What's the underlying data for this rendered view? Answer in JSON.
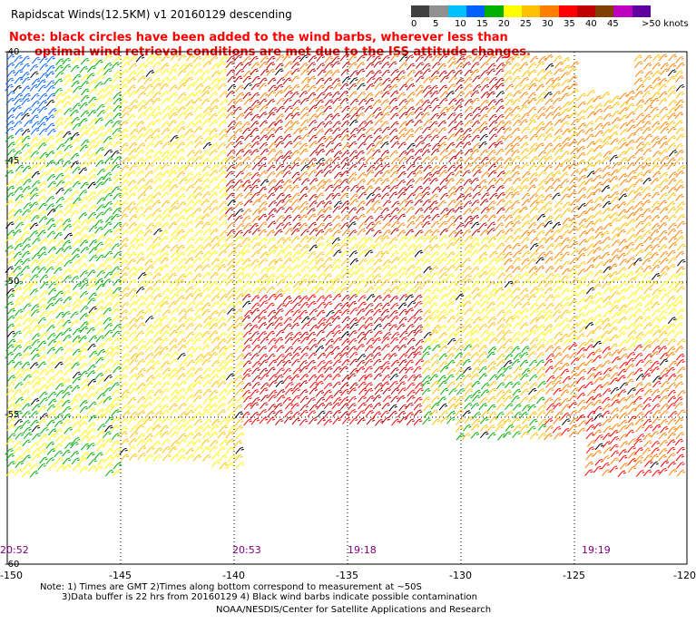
{
  "header": {
    "title": "Rapidscat Winds(12.5KM) v1 20160129 descending",
    "note_line1": "Note: black circles have been added to the wind barbs, wherever less than",
    "note_line2": "optimal wind retrieval conditions are met due to the ISS attitude changes."
  },
  "colorbar": {
    "colors": [
      "#404040",
      "#909090",
      "#00c0ff",
      "#0060ff",
      "#00b000",
      "#ffff00",
      "#ffc000",
      "#ff8000",
      "#ff0000",
      "#c00000",
      "#804000",
      "#c000c0",
      "#6000a0"
    ],
    "labels": [
      "0",
      "5",
      "10",
      "15",
      "20",
      "25",
      "30",
      "35",
      "40",
      "45",
      ">50 knots"
    ]
  },
  "map": {
    "lat_labels": [
      "-40",
      "-45",
      "-50",
      "-55",
      "-60"
    ],
    "lon_labels": [
      "-150",
      "-145",
      "-140",
      "-135",
      "-130",
      "-125",
      "-120"
    ],
    "time_labels": [
      "20:52",
      "20:53",
      "19:18",
      "19:19"
    ]
  },
  "footer": {
    "line1": "Note: 1) Times are GMT 2)Times along bottom correspond to measurement at ~50S",
    "line2": "3)Data buffer is 22 hrs from 20160129 4) Black wind barbs indicate possible contamination",
    "credit": "NOAA/NESDIS/Center for Satellite Applications and Research"
  }
}
